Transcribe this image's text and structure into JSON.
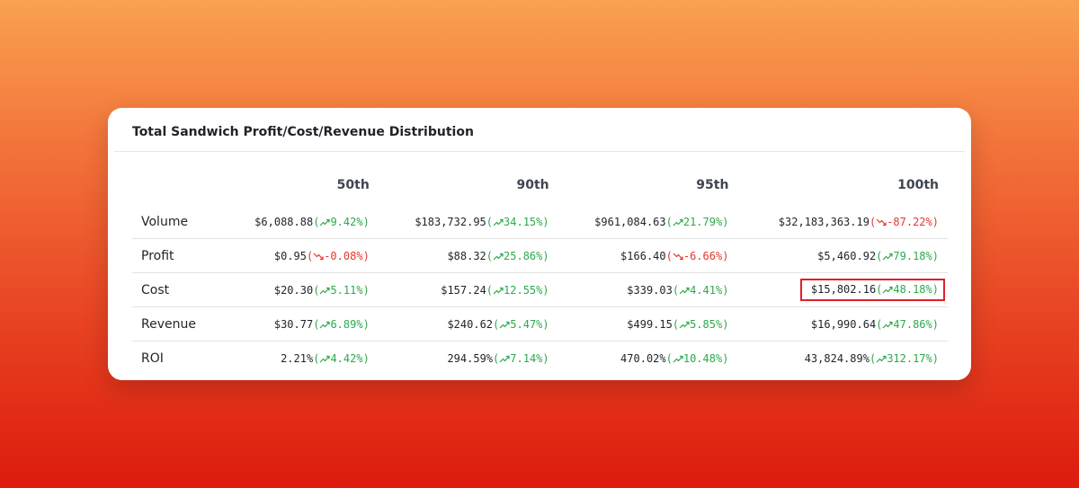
{
  "title": "Total Sandwich Profit/Cost/Revenue Distribution",
  "columns": [
    "",
    "50th",
    "90th",
    "95th",
    "100th"
  ],
  "rows": [
    {
      "label": "Volume",
      "cells": [
        {
          "value": "$6,088.88",
          "change": "9.42%",
          "dir": "up"
        },
        {
          "value": "$183,732.95",
          "change": "34.15%",
          "dir": "up"
        },
        {
          "value": "$961,084.63",
          "change": "21.79%",
          "dir": "up"
        },
        {
          "value": "$32,183,363.19",
          "change": "-87.22%",
          "dir": "down"
        }
      ]
    },
    {
      "label": "Profit",
      "cells": [
        {
          "value": "$0.95",
          "change": "-0.08%",
          "dir": "down"
        },
        {
          "value": "$88.32",
          "change": "25.86%",
          "dir": "up"
        },
        {
          "value": "$166.40",
          "change": "-6.66%",
          "dir": "down"
        },
        {
          "value": "$5,460.92",
          "change": "79.18%",
          "dir": "up"
        }
      ]
    },
    {
      "label": "Cost",
      "cells": [
        {
          "value": "$20.30",
          "change": "5.11%",
          "dir": "up"
        },
        {
          "value": "$157.24",
          "change": "12.55%",
          "dir": "up"
        },
        {
          "value": "$339.03",
          "change": "4.41%",
          "dir": "up"
        },
        {
          "value": "$15,802.16",
          "change": "48.18%",
          "dir": "up",
          "highlighted": true
        }
      ]
    },
    {
      "label": "Revenue",
      "cells": [
        {
          "value": "$30.77",
          "change": "6.89%",
          "dir": "up"
        },
        {
          "value": "$240.62",
          "change": "5.47%",
          "dir": "up"
        },
        {
          "value": "$499.15",
          "change": "5.85%",
          "dir": "up"
        },
        {
          "value": "$16,990.64",
          "change": "47.86%",
          "dir": "up"
        }
      ]
    },
    {
      "label": "ROI",
      "cells": [
        {
          "value": "2.21%",
          "change": "4.42%",
          "dir": "up"
        },
        {
          "value": "294.59%",
          "change": "7.14%",
          "dir": "up"
        },
        {
          "value": "470.02%",
          "change": "10.48%",
          "dir": "up"
        },
        {
          "value": "43,824.89%",
          "change": "312.17%",
          "dir": "up"
        }
      ]
    }
  ],
  "colors": {
    "up": "#2ea84d",
    "down": "#e2382f",
    "highlight_border": "#e01f2b",
    "background_top": "#f9a151",
    "background_bottom": "#dd1b0e"
  },
  "icons": {
    "up": "trend-up-icon",
    "down": "trend-down-icon"
  }
}
